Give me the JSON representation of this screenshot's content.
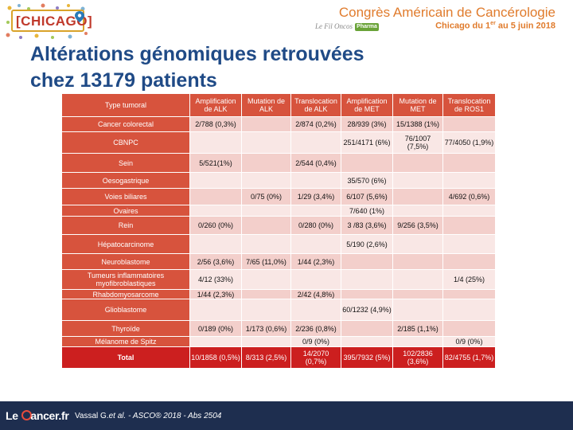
{
  "header": {
    "logo_text": "[CHICAGO]",
    "conference_title": "Congrès Américain de Cancérologie",
    "sublabel": "Le Fil Oncos",
    "pharma_badge": "Pharma",
    "date_prefix": "Chicago du 1",
    "date_sup": "er",
    "date_suffix": " au 5 juin 2018",
    "accent_color": "#e07b2c"
  },
  "slide": {
    "title_line1": "Altérations génomiques retrouvées",
    "title_line2": "chez 13179 patients",
    "title_color": "#1f4a86"
  },
  "table": {
    "header_color": "#d7533d",
    "total_color": "#cc1f1f",
    "columns": [
      "Type tumoral",
      "Amplification de ALK",
      "Mutation de ALK",
      "Translocation de ALK",
      "Amplification de MET",
      "Mutation de MET",
      "Translocation de ROS1"
    ],
    "rows": [
      {
        "label": "Cancer colorectal",
        "cells": [
          "2/788 (0,3%)",
          "",
          "2/874 (0,2%)",
          "28/939 (3%)",
          "15/1388 (1%)",
          ""
        ]
      },
      {
        "label": "CBNPC",
        "cells": [
          "",
          "",
          "",
          "251/4171 (6%)",
          "76/1007 (7,5%)",
          "77/4050 (1,9%)"
        ]
      },
      {
        "label": "Sein",
        "cells": [
          "5/521(1%)",
          "",
          "2/544 (0,4%)",
          "",
          "",
          ""
        ]
      },
      {
        "label": "Oesogastrique",
        "cells": [
          "",
          "",
          "",
          "35/570 (6%)",
          "",
          ""
        ]
      },
      {
        "label": "Voies biliares",
        "cells": [
          "",
          "0/75 (0%)",
          "1/29 (3,4%)",
          "6/107 (5,6%)",
          "",
          "4/692 (0,6%)"
        ]
      },
      {
        "label": "Ovaires",
        "cells": [
          "",
          "",
          "",
          "7/640 (1%)",
          "",
          ""
        ]
      },
      {
        "label": "Rein",
        "cells": [
          "0/260 (0%)",
          "",
          "0/280 (0%)",
          "3 /83 (3,6%)",
          "9/256 (3,5%)",
          ""
        ]
      },
      {
        "label": "Hépatocarcinome",
        "cells": [
          "",
          "",
          "",
          "5/190 (2,6%)",
          "",
          ""
        ]
      },
      {
        "label": "Neuroblastome",
        "cells": [
          "2/56 (3,6%)",
          "7/65 (11,0%)",
          "1/44 (2,3%)",
          "",
          "",
          ""
        ]
      },
      {
        "label": "Tumeurs inflammatoires myofibroblastiques",
        "cells": [
          "4/12 (33%)",
          "",
          "",
          "",
          "",
          "1/4 (25%)"
        ]
      },
      {
        "label": "Rhabdomyosarcome",
        "cells": [
          "1/44 (2,3%)",
          "",
          "2/42 (4,8%)",
          "",
          "",
          ""
        ]
      },
      {
        "label": "Glioblastome",
        "cells": [
          "",
          "",
          "",
          "60/1232 (4,9%)",
          "",
          ""
        ]
      },
      {
        "label": "Thyroïde",
        "cells": [
          "0/189 (0%)",
          "1/173 (0,6%)",
          "2/236 (0,8%)",
          "",
          "2/185 (1,1%)",
          ""
        ]
      },
      {
        "label": "Mélanome de Spitz",
        "cells": [
          "",
          "",
          "0/9 (0%)",
          "",
          "",
          "0/9 (0%)"
        ]
      }
    ],
    "total": {
      "label": "Total",
      "cells": [
        "10/1858 (0,5%)",
        "8/313 (2,5%)",
        "14/2070 (0,7%)",
        "395/7932 (5%)",
        "102/2836 (3,6%)",
        "82/4755 (1,7%)"
      ]
    }
  },
  "footer": {
    "logo_pre": "Le ",
    "logo_post": "ancer.fr",
    "citation_author": "Vassal G.",
    "citation_etal": "et al.",
    "citation_rest": " - ASCO® 2018 - Abs 2504",
    "background": "#1e2e4f"
  }
}
